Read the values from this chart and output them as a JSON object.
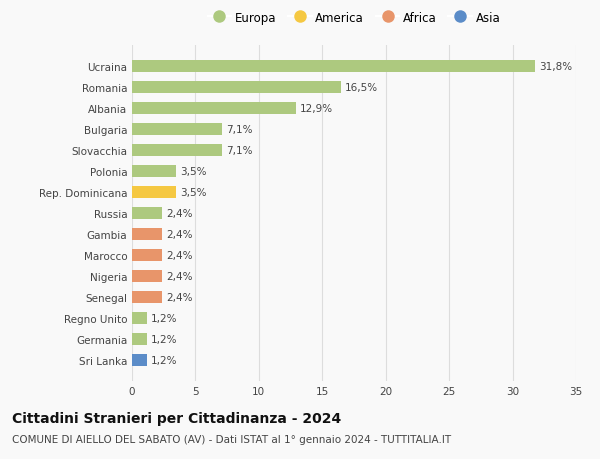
{
  "categories": [
    "Ucraina",
    "Romania",
    "Albania",
    "Bulgaria",
    "Slovacchia",
    "Polonia",
    "Rep. Dominicana",
    "Russia",
    "Gambia",
    "Marocco",
    "Nigeria",
    "Senegal",
    "Regno Unito",
    "Germania",
    "Sri Lanka"
  ],
  "values": [
    31.8,
    16.5,
    12.9,
    7.1,
    7.1,
    3.5,
    3.5,
    2.4,
    2.4,
    2.4,
    2.4,
    2.4,
    1.2,
    1.2,
    1.2
  ],
  "labels": [
    "31,8%",
    "16,5%",
    "12,9%",
    "7,1%",
    "7,1%",
    "3,5%",
    "3,5%",
    "2,4%",
    "2,4%",
    "2,4%",
    "2,4%",
    "2,4%",
    "1,2%",
    "1,2%",
    "1,2%"
  ],
  "continent": [
    "Europa",
    "Europa",
    "Europa",
    "Europa",
    "Europa",
    "Europa",
    "America",
    "Europa",
    "Africa",
    "Africa",
    "Africa",
    "Africa",
    "Europa",
    "Europa",
    "Asia"
  ],
  "colors": {
    "Europa": "#adc97f",
    "America": "#f5c842",
    "Africa": "#e8956a",
    "Asia": "#5b8cc8"
  },
  "xlim": [
    0,
    35
  ],
  "xticks": [
    0,
    5,
    10,
    15,
    20,
    25,
    30,
    35
  ],
  "title": "Cittadini Stranieri per Cittadinanza - 2024",
  "subtitle": "COMUNE DI AIELLO DEL SABATO (AV) - Dati ISTAT al 1° gennaio 2024 - TUTTITALIA.IT",
  "background_color": "#f9f9f9",
  "grid_color": "#dddddd",
  "bar_height": 0.55,
  "title_fontsize": 10,
  "subtitle_fontsize": 7.5,
  "label_fontsize": 7.5,
  "tick_fontsize": 7.5,
  "legend_fontsize": 8.5
}
